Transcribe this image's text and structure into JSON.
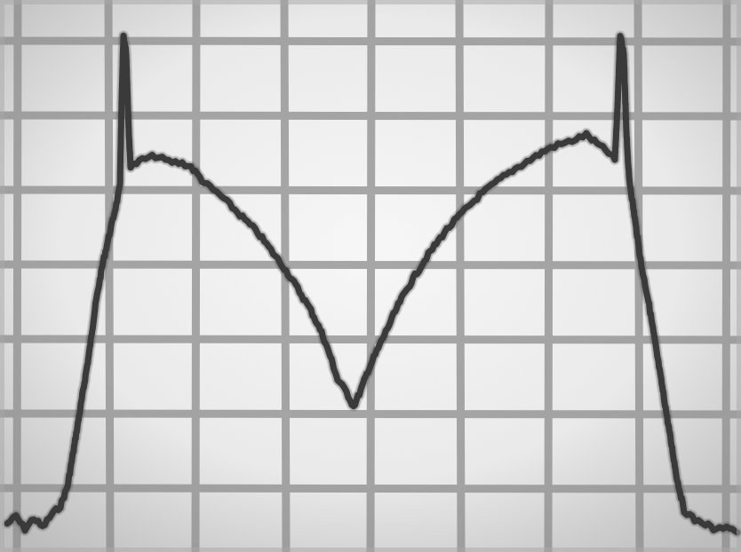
{
  "colors": {
    "screen_center": "#f7f7f7",
    "screen_edge": "#b9b9b9",
    "graticule": "#8f8f8f",
    "trace": "#3a3a3a"
  },
  "graticule": {
    "vertical_divisions": 8,
    "horizontal_divisions": 7
  },
  "trace_shape": {
    "description_type": "oscilloscope-waveform",
    "features": [
      "left-spike",
      "central-dip",
      "right-spike"
    ]
  }
}
